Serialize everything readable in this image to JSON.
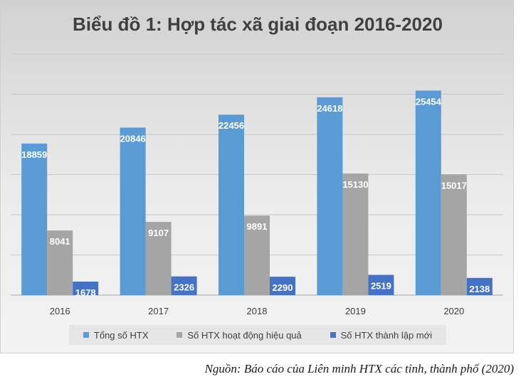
{
  "chart_data": {
    "type": "bar",
    "title": "Biểu đồ 1: Hợp tác xã giai đoạn 2016-2020",
    "categories": [
      "2016",
      "2017",
      "2018",
      "2019",
      "2020"
    ],
    "series": [
      {
        "name": "Tổng số HTX",
        "values": [
          18859,
          20846,
          22456,
          24618,
          25454
        ],
        "color": "#5b9bd5"
      },
      {
        "name": "Số HTX hoạt động hiệu quả",
        "values": [
          8041,
          9107,
          9891,
          15130,
          15017
        ],
        "color": "#a5a5a5"
      },
      {
        "name": "Số HTX thành lập mới",
        "values": [
          1678,
          2326,
          2290,
          2519,
          2138
        ],
        "color": "#4472c4"
      }
    ],
    "ylim": [
      0,
      30000
    ],
    "grid": true,
    "legend_position": "bottom"
  },
  "source_note": "Nguồn: Báo cáo của Liên minh HTX các tỉnh, thành phố (2020)"
}
